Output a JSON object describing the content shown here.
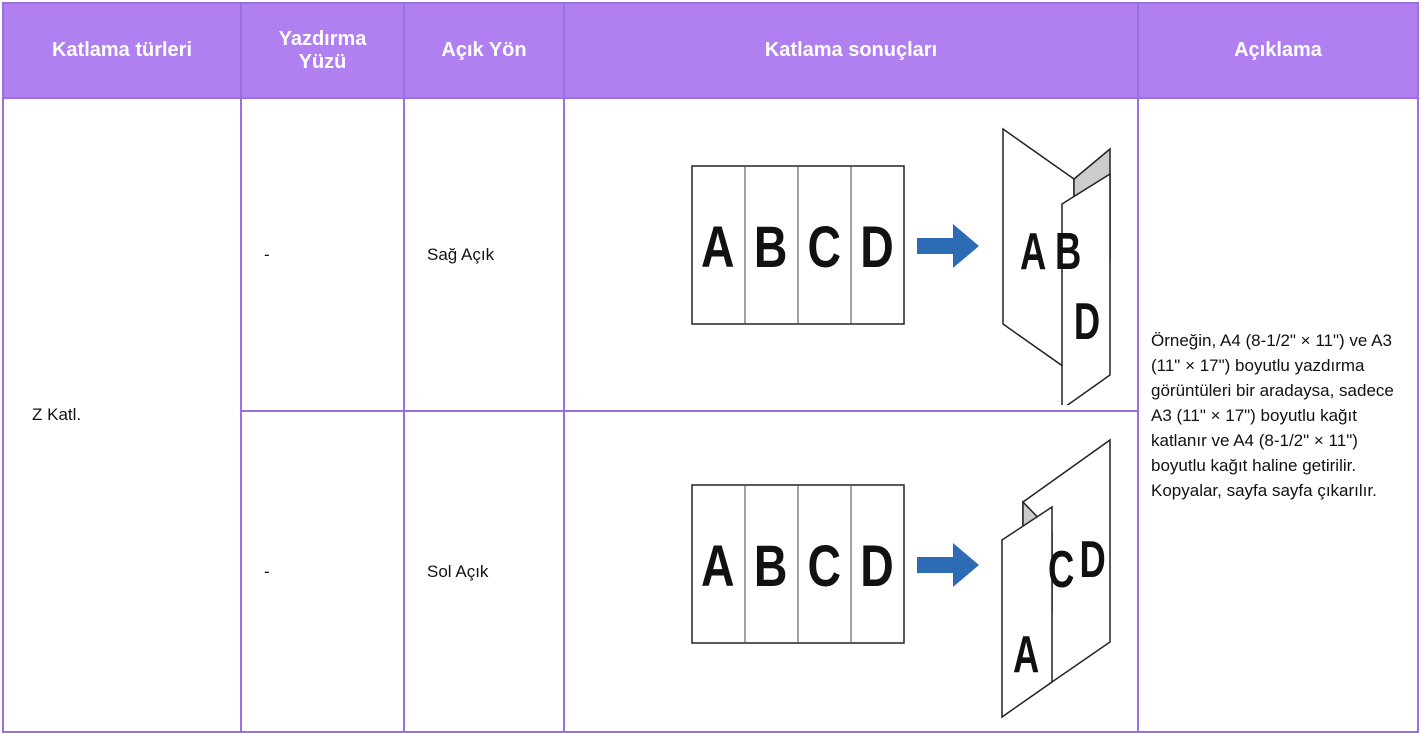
{
  "table": {
    "header": [
      "Katlama türleri",
      "Yazdırma Yüzü",
      "Açık Yön",
      "Katlama sonuçları",
      "Açıklama"
    ],
    "type": "Z Katl.",
    "description": "Örneğin, A4 (8-1/2\" × 11\") ve A3 (11\" × 17\") boyutlu yazdırma görüntüleri bir aradaysa, sadece A3 (11\" × 17\") boyutlu kağıt katlanır ve A4 (8-1/2\" × 11\") boyutlu kağıt haline getirilir. Kopyalar, sayfa sayfa çıkarılır.",
    "rows": [
      {
        "side": "-",
        "direction": "Sağ Açık",
        "strip": [
          "A",
          "B",
          "C",
          "D"
        ],
        "folded": [
          "A",
          "B",
          "D"
        ]
      },
      {
        "side": "-",
        "direction": "Sol Açık",
        "strip": [
          "A",
          "B",
          "C",
          "D"
        ],
        "folded": [
          "C",
          "D",
          "A"
        ]
      }
    ]
  }
}
